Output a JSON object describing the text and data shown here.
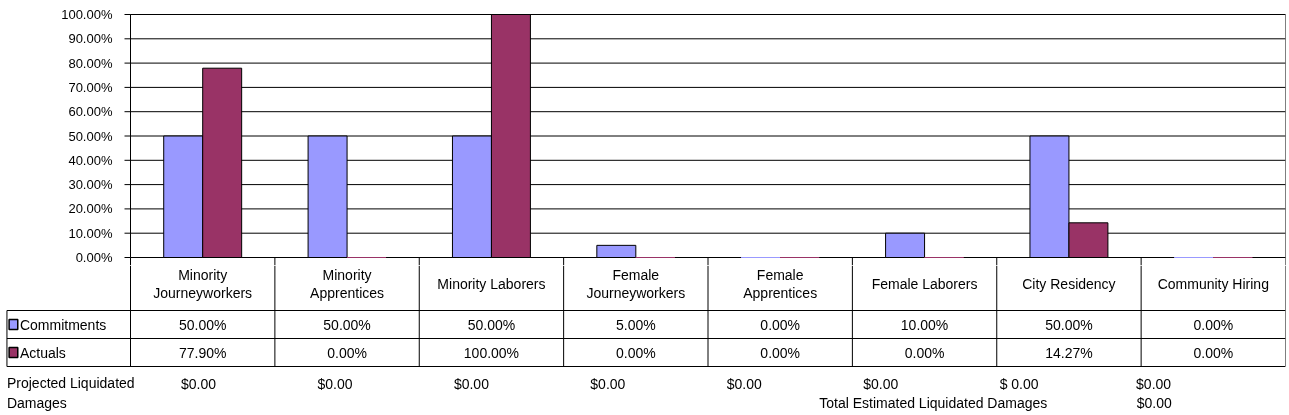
{
  "chart_data": {
    "type": "bar",
    "categories": [
      "Minority Journeyworkers",
      "Minority Apprentices",
      "Minority Laborers",
      "Female Journeyworkers",
      "Female Apprentices",
      "Female Laborers",
      "City Residency",
      "Community Hiring"
    ],
    "series": [
      {
        "name": "Commitments",
        "color": "#9999ff",
        "values": [
          50,
          50,
          50,
          5,
          0,
          10,
          50,
          0
        ],
        "value_labels": [
          "50.00%",
          "50.00%",
          "50.00%",
          "5.00%",
          "0.00%",
          "10.00%",
          "50.00%",
          "0.00%"
        ]
      },
      {
        "name": "Actuals",
        "color": "#993366",
        "values": [
          77.9,
          0,
          100,
          0,
          0,
          0,
          14.27,
          0
        ],
        "value_labels": [
          "77.90%",
          "0.00%",
          "100.00%",
          "0.00%",
          "0.00%",
          "0.00%",
          "14.27%",
          "0.00%"
        ]
      }
    ],
    "ylim": [
      0,
      100
    ],
    "yticks": [
      {
        "value": 0,
        "label": "0.00%"
      },
      {
        "value": 10,
        "label": "10.00%"
      },
      {
        "value": 20,
        "label": "20.00%"
      },
      {
        "value": 30,
        "label": "30.00%"
      },
      {
        "value": 40,
        "label": "40.00%"
      },
      {
        "value": 50,
        "label": "50.00%"
      },
      {
        "value": 60,
        "label": "60.00%"
      },
      {
        "value": 70,
        "label": "70.00%"
      },
      {
        "value": 80,
        "label": "80.00%"
      },
      {
        "value": 90,
        "label": "90.00%"
      },
      {
        "value": 100,
        "label": "100.00%"
      }
    ],
    "grid": "y",
    "legend": "bottom left",
    "annotations": [
      "Projected Liquidated Damages",
      "$0.00",
      "$0.00",
      "$0.00",
      "$0.00",
      "$0.00",
      "$0.00",
      "$ 0.00",
      "$0.00",
      "Total Estimated Liquidated Damages",
      "$0.00"
    ]
  }
}
